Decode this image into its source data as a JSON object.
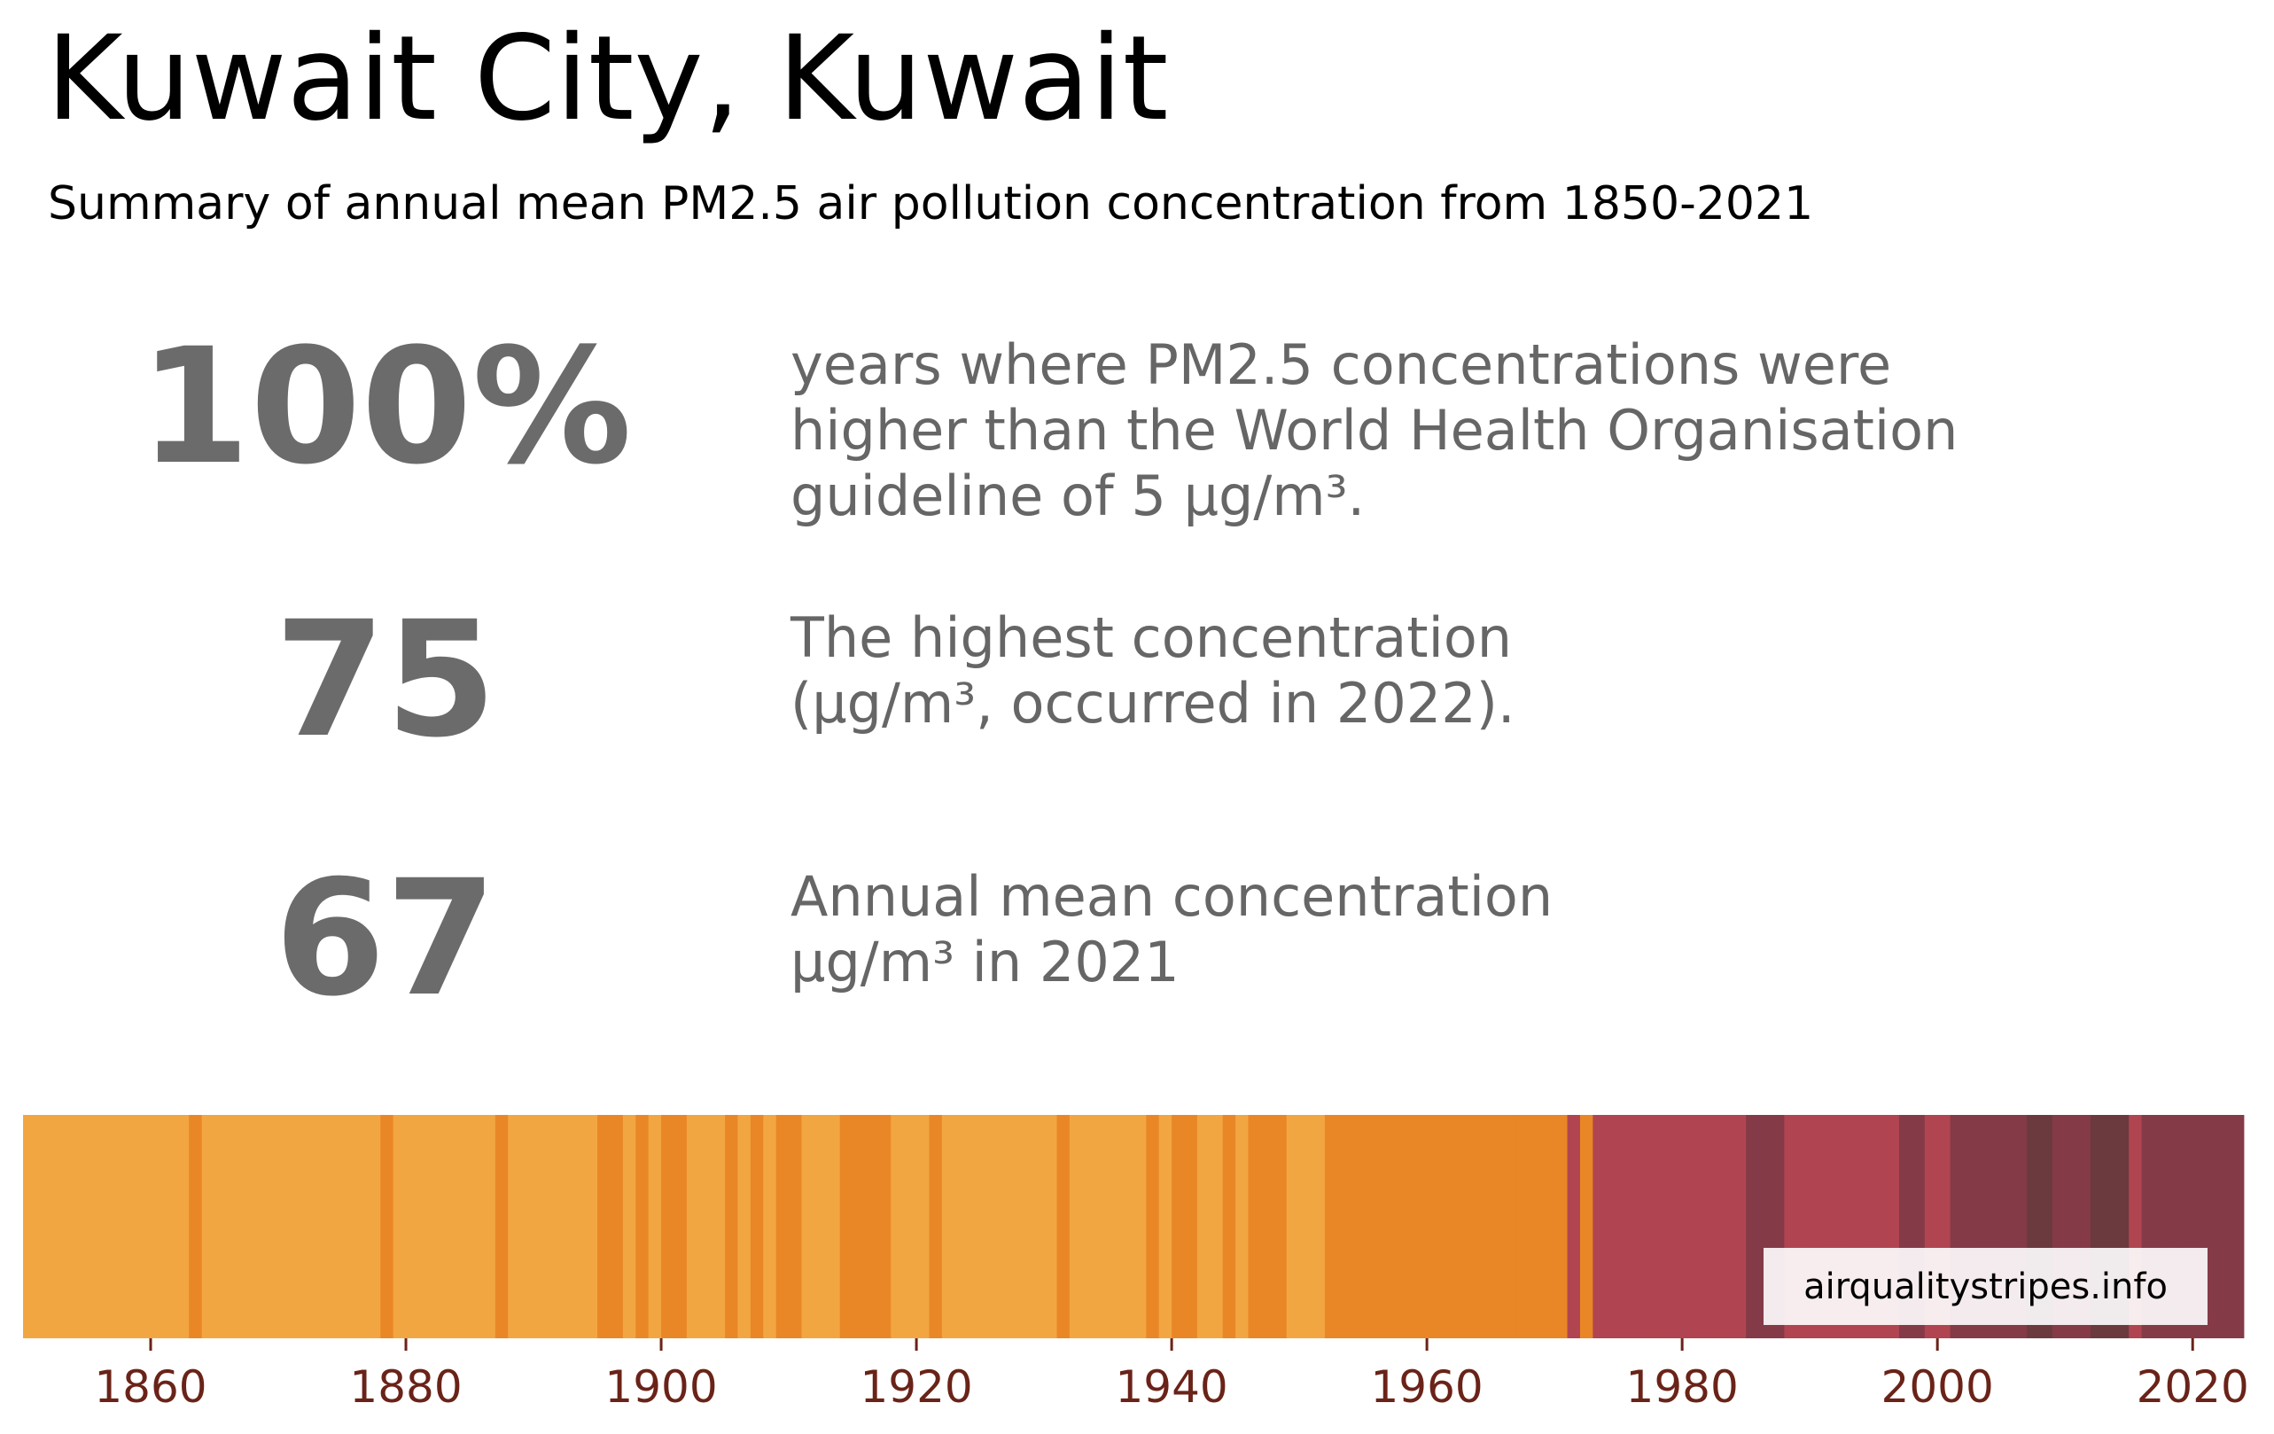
{
  "header": {
    "title": "Kuwait City, Kuwait",
    "subtitle": "Summary of annual mean PM2.5 air pollution concentration from 1850-2021"
  },
  "stats": [
    {
      "value": "100%",
      "lines": [
        "years where PM2.5 concentrations were",
        "higher than the World Health Organisation",
        "guideline of 5 µg/m³."
      ]
    },
    {
      "value": "75",
      "lines": [
        "The highest concentration",
        "(µg/m³, occurred in 2022)."
      ]
    },
    {
      "value": "67",
      "lines": [
        "Annual mean concentration",
        "µg/m³ in 2021"
      ]
    }
  ],
  "chart_data": {
    "type": "heatmap",
    "x_range": [
      1850,
      2022
    ],
    "ticks": [
      1860,
      1880,
      1900,
      1920,
      1940,
      1960,
      1980,
      2000,
      2020
    ],
    "tick_color": "#6a2318",
    "colors": [
      "#f2a641",
      "#e98726",
      "#b04551",
      "#853a48",
      "#6b3a3e"
    ],
    "levels": [
      0,
      0,
      0,
      0,
      0,
      0,
      0,
      0,
      0,
      0,
      0,
      0,
      0,
      1,
      0,
      0,
      0,
      0,
      0,
      0,
      0,
      0,
      0,
      0,
      0,
      0,
      0,
      0,
      1,
      0,
      0,
      0,
      0,
      0,
      0,
      0,
      0,
      1,
      0,
      0,
      0,
      0,
      0,
      0,
      0,
      1,
      1,
      0,
      1,
      0,
      1,
      1,
      0,
      0,
      0,
      1,
      0,
      1,
      0,
      1,
      1,
      0,
      0,
      0,
      1,
      1,
      1,
      1,
      0,
      0,
      0,
      1,
      0,
      0,
      0,
      0,
      0,
      0,
      0,
      0,
      0,
      1,
      0,
      0,
      0,
      0,
      0,
      0,
      1,
      0,
      1,
      1,
      0,
      0,
      1,
      0,
      1,
      1,
      1,
      0,
      0,
      0,
      1,
      1,
      1,
      1,
      1,
      1,
      1,
      1,
      1,
      1,
      1,
      1,
      1,
      1,
      1,
      1,
      1,
      1,
      1,
      2,
      1,
      2,
      2,
      2,
      2,
      2,
      2,
      2,
      2,
      2,
      2,
      2,
      2,
      3,
      3,
      3,
      2,
      2,
      2,
      2,
      2,
      2,
      2,
      2,
      2,
      3,
      3,
      2,
      2,
      3,
      3,
      3,
      3,
      3,
      3,
      4,
      4,
      3,
      3,
      3,
      4,
      4,
      4,
      2,
      3,
      3,
      3,
      3,
      3,
      3,
      3,
      3
    ],
    "credit": "airqualitystripes.info"
  }
}
